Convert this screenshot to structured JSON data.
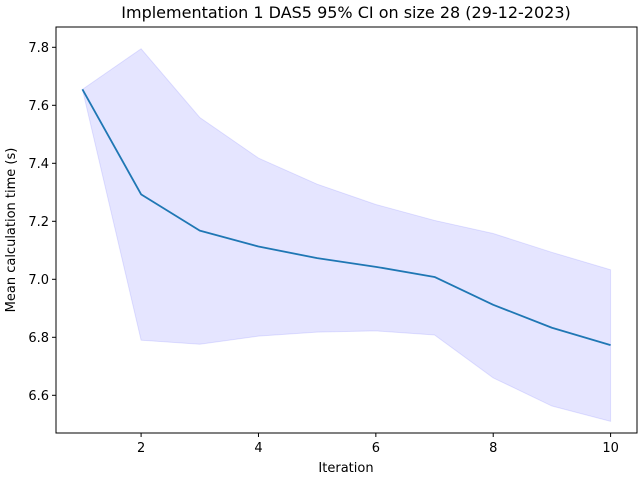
{
  "chart_data": {
    "type": "line",
    "title": "Implementation 1 DAS5 95% CI on size 28 (29-12-2023)",
    "xlabel": "Iteration",
    "ylabel": "Mean calculation time (s)",
    "xlim": [
      0.55,
      10.45
    ],
    "ylim": [
      6.47,
      7.87
    ],
    "xticks": [
      2,
      4,
      6,
      8,
      10
    ],
    "yticks": [
      6.6,
      6.8,
      7.0,
      7.2,
      7.4,
      7.6,
      7.8
    ],
    "grid": false,
    "x": [
      1,
      2,
      3,
      4,
      5,
      6,
      7,
      8,
      9,
      10
    ],
    "series": [
      {
        "values": [
          7.655,
          7.293,
          7.168,
          7.113,
          7.073,
          7.043,
          7.008,
          6.912,
          6.833,
          6.773
        ],
        "ci_upper": [
          7.655,
          7.795,
          7.558,
          7.418,
          7.328,
          7.258,
          7.203,
          7.158,
          7.093,
          7.033
        ],
        "ci_lower": [
          7.655,
          6.79,
          6.776,
          6.804,
          6.818,
          6.822,
          6.808,
          6.66,
          6.563,
          6.51
        ],
        "color": "#1f77b4",
        "ci_color": "#0000ff"
      }
    ]
  }
}
